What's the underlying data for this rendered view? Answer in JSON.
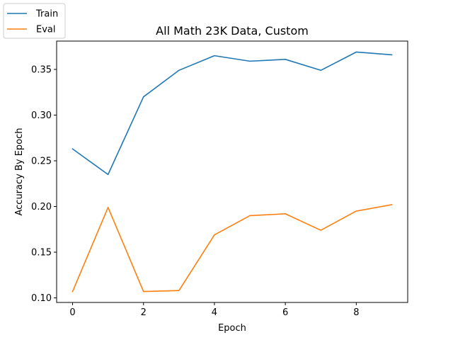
{
  "chart_data": {
    "type": "line",
    "title": "All Math 23K Data, Custom",
    "xlabel": "Epoch",
    "ylabel": "Accuracy By Epoch",
    "x": [
      0,
      1,
      2,
      3,
      4,
      5,
      6,
      7,
      8,
      9
    ],
    "xlim": [
      -0.45,
      9.45
    ],
    "ylim": [
      0.095,
      0.381
    ],
    "xticks": [
      0,
      2,
      4,
      6,
      8
    ],
    "yticks": [
      0.1,
      0.15,
      0.2,
      0.25,
      0.3,
      0.35
    ],
    "xtick_labels": [
      "0",
      "2",
      "4",
      "6",
      "8"
    ],
    "ytick_labels": [
      "0.10",
      "0.15",
      "0.20",
      "0.25",
      "0.30",
      "0.35"
    ],
    "grid": false,
    "legend_position": "top-left, outside plot area",
    "series": [
      {
        "name": "Train",
        "color": "#1f77b4",
        "values": [
          0.263,
          0.235,
          0.32,
          0.349,
          0.365,
          0.359,
          0.361,
          0.349,
          0.369,
          0.366
        ]
      },
      {
        "name": "Eval",
        "color": "#ff7f0e",
        "values": [
          0.107,
          0.199,
          0.107,
          0.108,
          0.169,
          0.19,
          0.192,
          0.174,
          0.195,
          0.202
        ]
      }
    ]
  }
}
